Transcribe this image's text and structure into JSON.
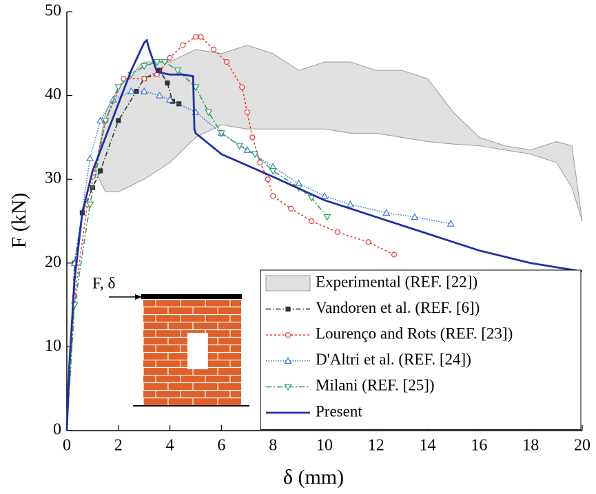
{
  "chart_data": {
    "type": "line",
    "xlabel": "δ (mm)",
    "ylabel": "F (kN)",
    "inset_label": "F, δ",
    "xlim": [
      0,
      20
    ],
    "ylim": [
      0,
      50
    ],
    "xticks": [
      0,
      2,
      4,
      6,
      8,
      10,
      12,
      14,
      16,
      18,
      20
    ],
    "yticks": [
      0,
      10,
      20,
      30,
      40,
      50
    ],
    "legend": "lower right",
    "series": [
      {
        "name": "Experimental (REF. [22])",
        "color": "#e0e0e0",
        "style": "band",
        "x": [
          1.1,
          1.5,
          2,
          3,
          4,
          5,
          6,
          7,
          8,
          9,
          10,
          11,
          12,
          13,
          14,
          15,
          16,
          17,
          18,
          19,
          19.6,
          20
        ],
        "values": [
          31,
          38,
          41,
          44,
          44,
          45.5,
          45,
          46,
          45,
          43,
          44,
          44,
          43,
          43,
          42,
          38,
          35,
          34,
          33.5,
          34.5,
          34,
          25
        ],
        "lower": [
          31,
          28.5,
          28.5,
          30,
          32,
          35,
          36.5,
          36,
          36,
          36,
          36,
          35.5,
          35.5,
          35,
          34.5,
          34.2,
          34,
          33.5,
          33,
          32,
          29,
          25
        ]
      },
      {
        "name": "Vandoren et al. (REF. [6])",
        "color": "#333333",
        "dash": "7,3,1.5,3",
        "marker": "square",
        "x": [
          0,
          0.3,
          0.6,
          1,
          1.3,
          2,
          2.7,
          3,
          3.6,
          3.9,
          4.1,
          4.35
        ],
        "values": [
          0,
          20,
          26,
          29,
          31,
          37,
          40.5,
          42,
          43,
          41.5,
          39.3,
          39
        ]
      },
      {
        "name": "Lourenço and Rots  (REF. [23])",
        "color": "#e8392f",
        "dash": "3,3",
        "marker": "circle",
        "x": [
          0,
          0.3,
          0.8,
          1.5,
          2.2,
          3,
          3.5,
          4,
          4.5,
          5,
          5.2,
          5.7,
          6.2,
          6.8,
          7,
          7.2,
          7.5,
          7.8,
          8,
          8.7,
          9.5,
          10.5,
          11.7,
          12.7
        ],
        "values": [
          0,
          16,
          27,
          37,
          42,
          42,
          42.5,
          44.5,
          46,
          47,
          47,
          45.5,
          44,
          41,
          38,
          35,
          32,
          30,
          28,
          26.5,
          25,
          23.7,
          22.5,
          21
        ]
      },
      {
        "name": "D'Altri et al. (REF. [24])",
        "color": "#3a78d8",
        "dash": "1.5,2",
        "marker": "triangle-up",
        "x": [
          0,
          0.3,
          0.9,
          1.3,
          1.8,
          2.5,
          3,
          3.6,
          4,
          5,
          6,
          7,
          8,
          9,
          10,
          11,
          12.4,
          13.5,
          14.9
        ],
        "values": [
          0,
          20,
          32.5,
          37,
          39.5,
          40.5,
          40.5,
          40,
          39.5,
          38,
          35.5,
          33.5,
          31.5,
          29.5,
          28,
          27,
          26,
          25.5,
          24.7
        ]
      },
      {
        "name": "Milani (REF. [25])",
        "color": "#2e9e5a",
        "dash": "8,3,2,3",
        "marker": "triangle-down",
        "x": [
          0,
          0.3,
          0.9,
          1.5,
          2,
          2.5,
          3,
          3.5,
          3.8,
          4.3,
          5,
          5.5,
          6,
          6.7,
          7.3,
          8,
          9,
          9.5,
          10.1
        ],
        "values": [
          0,
          15,
          27,
          37,
          41,
          42.5,
          43.5,
          44,
          44,
          43,
          41,
          38,
          35.5,
          34,
          33,
          31,
          29,
          27.8,
          25.5
        ]
      },
      {
        "name": "Present",
        "color": "#1f2fa8",
        "dash": "none",
        "marker": "none",
        "x": [
          0,
          0.1,
          0.3,
          0.6,
          1,
          1.5,
          2,
          2.5,
          3,
          3.1,
          3.2,
          3.5,
          4,
          4.5,
          4.9,
          4.95,
          5,
          6,
          8,
          10,
          12,
          14,
          16,
          18,
          20
        ],
        "values": [
          0,
          8,
          18,
          26,
          31,
          35,
          39,
          43,
          46.3,
          46.6,
          45.5,
          42.8,
          42.5,
          42.5,
          42.3,
          36,
          35.5,
          33,
          30.3,
          27.5,
          25.5,
          23.5,
          21.5,
          20,
          19
        ]
      }
    ]
  }
}
